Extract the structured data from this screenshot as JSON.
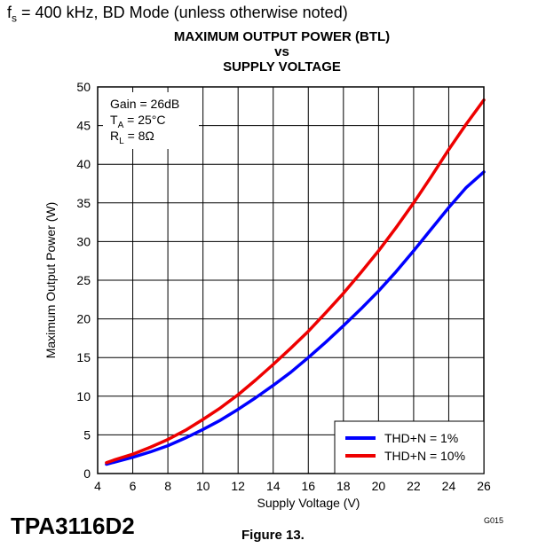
{
  "header": {
    "condition_symbol": "f",
    "condition_sub": "s",
    "condition_rest": " = 400 kHz, BD Mode (unless otherwise noted)"
  },
  "chart_data": {
    "type": "line",
    "title_lines": [
      "MAXIMUM OUTPUT POWER (BTL)",
      "vs",
      "SUPPLY VOLTAGE"
    ],
    "xlabel": "Supply Voltage (V)",
    "ylabel": "Maximum Output Power (W)",
    "xlim": [
      4,
      26
    ],
    "ylim": [
      0,
      50
    ],
    "xticks": [
      4,
      6,
      8,
      10,
      12,
      14,
      16,
      18,
      20,
      22,
      24,
      26
    ],
    "yticks": [
      0,
      5,
      10,
      15,
      20,
      25,
      30,
      35,
      40,
      45,
      50
    ],
    "grid": true,
    "legend_position": "bottom-right",
    "conditions": {
      "gain": "Gain = 26dB",
      "ta_symbol": "T",
      "ta_sub": "A",
      "ta_rest": " = 25°C",
      "rl_symbol": "R",
      "rl_sub": "L",
      "rl_rest": " = 8Ω"
    },
    "series": [
      {
        "name": "THD+N = 1%",
        "color": "#0000ff",
        "x": [
          4.5,
          5,
          6,
          7,
          8,
          9,
          10,
          11,
          12,
          13,
          14,
          15,
          16,
          17,
          18,
          19,
          20,
          21,
          22,
          23,
          24,
          25,
          26
        ],
        "y": [
          1.2,
          1.5,
          2.1,
          2.8,
          3.6,
          4.6,
          5.7,
          6.9,
          8.3,
          9.8,
          11.4,
          13.1,
          15.0,
          17.0,
          19.1,
          21.3,
          23.6,
          26.1,
          28.8,
          31.6,
          34.4,
          37.0,
          39.0
        ]
      },
      {
        "name": "THD+N = 10%",
        "color": "#ee0000",
        "x": [
          4.5,
          5,
          6,
          7,
          8,
          9,
          10,
          11,
          12,
          13,
          14,
          15,
          16,
          17,
          18,
          19,
          20,
          21,
          22,
          23,
          24,
          25,
          26
        ],
        "y": [
          1.4,
          1.8,
          2.5,
          3.4,
          4.4,
          5.6,
          7.0,
          8.5,
          10.2,
          12.1,
          14.1,
          16.2,
          18.4,
          20.8,
          23.3,
          26.0,
          28.8,
          31.8,
          35.0,
          38.4,
          41.9,
          45.2,
          48.3
        ]
      }
    ]
  },
  "footer": {
    "part_number": "TPA3116D2",
    "figure_label": "Figure 13.",
    "graphic_code": "G015"
  }
}
